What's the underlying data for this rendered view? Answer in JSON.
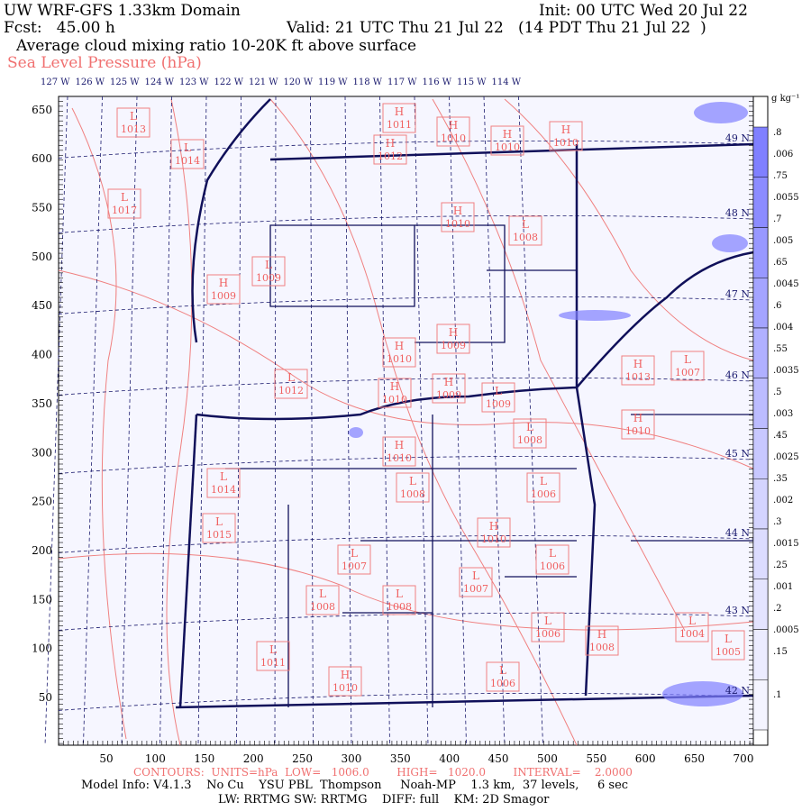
{
  "header": {
    "title": "UW WRF-GFS 1.33km Domain",
    "init": "Init: 00 UTC Wed 20 Jul 22",
    "fcst": "Fcst:   45.00 h",
    "valid": "Valid: 21 UTC Thu 21 Jul 22   (14 PDT Thu 21 Jul 22  )",
    "field": "Average cloud mixing ratio 10-20K ft above surface",
    "overlay": "Sea Level Pressure (hPa)"
  },
  "longitudes": [
    "127 W",
    "126 W",
    "125 W",
    "124 W",
    "123 W",
    "122 W",
    "121 W",
    "120 W",
    "119 W",
    "118 W",
    "117 W",
    "116 W",
    "115 W",
    "114 W"
  ],
  "latitudes": [
    "49 N",
    "48 N",
    "47 N",
    "46 N",
    "45 N",
    "44 N",
    "43 N",
    "42 N"
  ],
  "y_ticks": [
    "650",
    "600",
    "550",
    "500",
    "450",
    "400",
    "350",
    "300",
    "250",
    "200",
    "150",
    "100",
    "50"
  ],
  "x_ticks": [
    "50",
    "100",
    "150",
    "200",
    "250",
    "300",
    "350",
    "400",
    "450",
    "500",
    "550",
    "600",
    "650",
    "700"
  ],
  "colorbar": {
    "units": "g kg⁻¹",
    "labels_a": [
      ".006",
      ".0055",
      ".005",
      ".0045",
      ".004",
      ".0035",
      ".003",
      ".0025",
      ".002",
      ".0015",
      ".001",
      ".0005"
    ],
    "labels_b": [
      ".8",
      ".75",
      ".7",
      ".65",
      ".6",
      ".55",
      ".5",
      ".45",
      ".35",
      ".3",
      ".25",
      ".2",
      ".15",
      ".1"
    ],
    "colors": [
      "#8080ff",
      "#8c8cff",
      "#9898ff",
      "#a4a4ff",
      "#b0b0ff",
      "#bcbcff",
      "#c8c8ff",
      "#d4d4ff",
      "#dcdcff",
      "#e4e4ff",
      "#ececff",
      "#f4f4ff"
    ]
  },
  "pressure_labels": [
    {
      "type": "L",
      "value": "1013"
    },
    {
      "type": "L",
      "value": "1014"
    },
    {
      "type": "L",
      "value": "1017"
    },
    {
      "type": "H",
      "value": "1011"
    },
    {
      "type": "H",
      "value": "1010"
    },
    {
      "type": "H",
      "value": "1012"
    },
    {
      "type": "H",
      "value": "1010"
    },
    {
      "type": "H",
      "value": "1010"
    },
    {
      "type": "L",
      "value": "1009"
    },
    {
      "type": "H",
      "value": "1009"
    },
    {
      "type": "H",
      "value": "1010"
    },
    {
      "type": "L",
      "value": "1008"
    },
    {
      "type": "H",
      "value": "1010"
    },
    {
      "type": "H",
      "value": "1009"
    },
    {
      "type": "L",
      "value": "1012"
    },
    {
      "type": "H",
      "value": "1010"
    },
    {
      "type": "H",
      "value": "1009"
    },
    {
      "type": "L",
      "value": "1009"
    },
    {
      "type": "L",
      "value": "1007"
    },
    {
      "type": "H",
      "value": "1010"
    },
    {
      "type": "H",
      "value": "1010"
    },
    {
      "type": "L",
      "value": "1008"
    },
    {
      "type": "L",
      "value": "1014"
    },
    {
      "type": "L",
      "value": "1008"
    },
    {
      "type": "L",
      "value": "1006"
    },
    {
      "type": "L",
      "value": "1015"
    },
    {
      "type": "L",
      "value": "1007"
    },
    {
      "type": "H",
      "value": "1010"
    },
    {
      "type": "L",
      "value": "1006"
    },
    {
      "type": "L",
      "value": "1008"
    },
    {
      "type": "L",
      "value": "1008"
    },
    {
      "type": "L",
      "value": "1007"
    },
    {
      "type": "L",
      "value": "1011"
    },
    {
      "type": "H",
      "value": "1010"
    },
    {
      "type": "L",
      "value": "1006"
    },
    {
      "type": "H",
      "value": "1008"
    },
    {
      "type": "L",
      "value": "1006"
    },
    {
      "type": "L",
      "value": "1004"
    },
    {
      "type": "H",
      "value": "1013"
    },
    {
      "type": "L",
      "value": "1005"
    }
  ],
  "footer": {
    "contours": "CONTOURS:  UNITS=hPa  LOW=   1006.0        HIGH=   1020.0        INTERVAL=    2.0000",
    "model_info": "Model Info: V4.1.3    No Cu    YSU PBL  Thompson     Noah-MP    1.3 km,  37 levels,     6 sec",
    "physics": "LW: RRTMG SW: RRTMG    DIFF: full    KM: 2D Smagor"
  }
}
